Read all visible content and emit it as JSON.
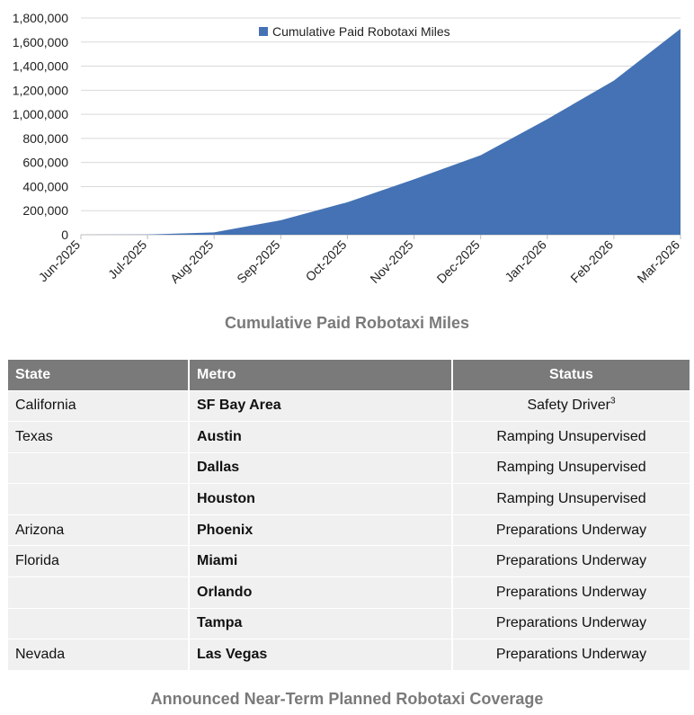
{
  "chart_data": {
    "type": "area",
    "x": [
      "Jun-2025",
      "Jul-2025",
      "Aug-2025",
      "Sep-2025",
      "Oct-2025",
      "Nov-2025",
      "Dec-2025",
      "Jan-2026",
      "Feb-2026",
      "Mar-2026"
    ],
    "series": [
      {
        "name": "Cumulative Paid Robotaxi Miles",
        "values": [
          0,
          2000,
          20000,
          120000,
          270000,
          460000,
          660000,
          960000,
          1280000,
          1710000
        ],
        "color": "#4472b4"
      }
    ],
    "title": "Cumulative Paid Robotaxi Miles",
    "ylim": [
      0,
      1800000
    ],
    "y_ticks": [
      "1,800,000",
      "1,600,000",
      "1,400,000",
      "1,200,000",
      "1,000,000",
      "800,000",
      "600,000",
      "400,000",
      "200,000",
      "0"
    ],
    "grid": true,
    "legend_position": "top-center"
  },
  "table": {
    "headers": [
      "State",
      "Metro",
      "Status"
    ],
    "rows": [
      {
        "state": "California",
        "metro": "SF Bay Area",
        "status": "Safety Driver",
        "status_sup": "3"
      },
      {
        "state": "Texas",
        "metro": "Austin",
        "status": "Ramping Unsupervised"
      },
      {
        "state": "",
        "metro": "Dallas",
        "status": "Ramping Unsupervised"
      },
      {
        "state": "",
        "metro": "Houston",
        "status": "Ramping Unsupervised"
      },
      {
        "state": "Arizona",
        "metro": "Phoenix",
        "status": "Preparations Underway"
      },
      {
        "state": "Florida",
        "metro": "Miami",
        "status": "Preparations Underway"
      },
      {
        "state": "",
        "metro": "Orlando",
        "status": "Preparations Underway"
      },
      {
        "state": "",
        "metro": "Tampa",
        "status": "Preparations Underway"
      },
      {
        "state": "Nevada",
        "metro": "Las Vegas",
        "status": "Preparations Underway"
      }
    ],
    "header_color": "#7a7a7a",
    "row_color": "#f0f0f0"
  },
  "captions": {
    "chart": "Cumulative Paid Robotaxi Miles",
    "table": "Announced Near-Term Planned Robotaxi Coverage"
  }
}
